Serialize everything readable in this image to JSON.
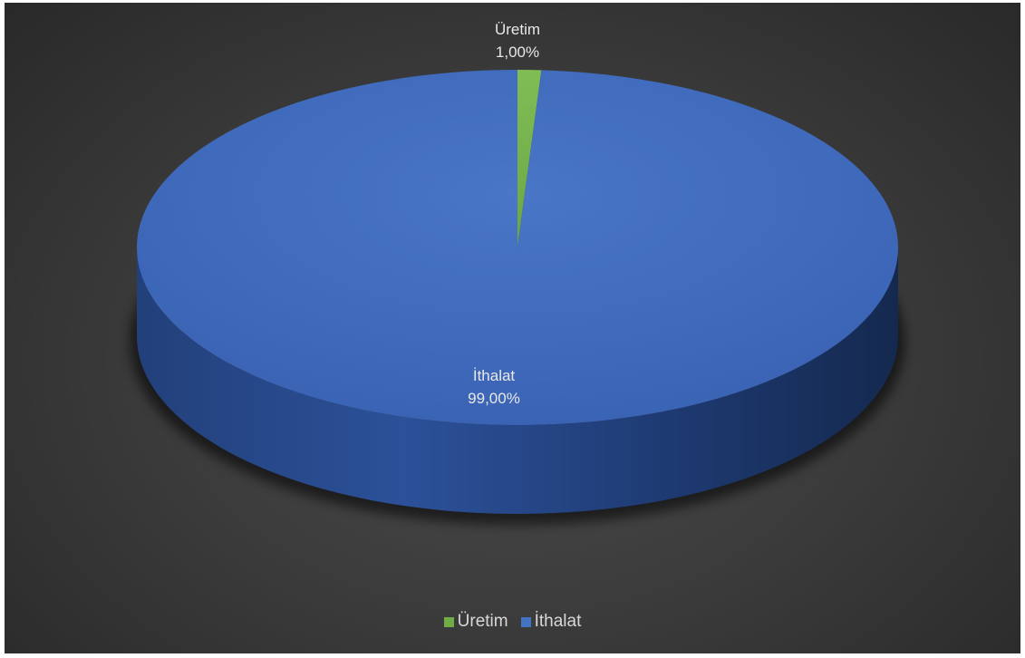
{
  "chart_data": {
    "type": "pie",
    "categories": [
      "Üretim",
      "İthalat"
    ],
    "values": [
      1.0,
      99.0
    ],
    "data_labels": [
      {
        "name": "Üretim",
        "value_text": "1,00%"
      },
      {
        "name": "İthalat",
        "value_text": "99,00%"
      }
    ],
    "colors": [
      "#70ad47",
      "#4472c4"
    ],
    "legend_position": "bottom",
    "style": "3d",
    "background": "#3a3a3a"
  },
  "legend": {
    "items": [
      {
        "label": "Üretim",
        "color": "#70ad47"
      },
      {
        "label": "İthalat",
        "color": "#4472c4"
      }
    ]
  }
}
